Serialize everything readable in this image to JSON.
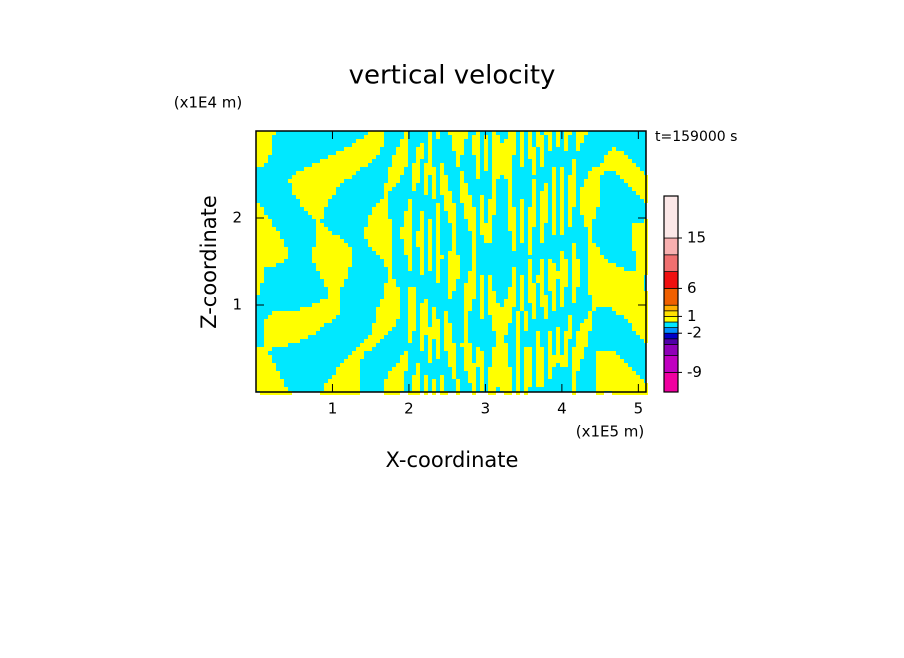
{
  "chart_data": {
    "type": "contour",
    "title": "vertical velocity",
    "xlabel": "X-coordinate",
    "ylabel": "Z-coordinate",
    "x_unit": "(x1E5 m)",
    "y_unit": "(x1E4 m)",
    "time_label": "t=159000 s",
    "xlim": [
      0,
      5.1
    ],
    "ylim": [
      0,
      3
    ],
    "xticks": [
      1,
      2,
      3,
      4,
      5
    ],
    "yticks": [
      1,
      2
    ],
    "field_colors": [
      "#00e8ff",
      "#ffff00"
    ],
    "colorbar": {
      "clim": [
        -12.5,
        22.5
      ],
      "levels": [
        -12.5,
        -9,
        -6,
        -4,
        -3,
        -2,
        -1,
        0,
        1,
        2,
        3,
        6,
        9,
        12,
        15,
        22.5
      ],
      "colors": [
        "#f000a0",
        "#c000c0",
        "#9000b8",
        "#5000a8",
        "#0000c8",
        "#0090ff",
        "#00e8ff",
        "#ffff00",
        "#ffe000",
        "#ffb000",
        "#f06000",
        "#f01010",
        "#f07070",
        "#f8b0b0",
        "#fce8e8"
      ],
      "ticks": [
        15,
        6,
        1,
        -2,
        -9
      ]
    }
  }
}
